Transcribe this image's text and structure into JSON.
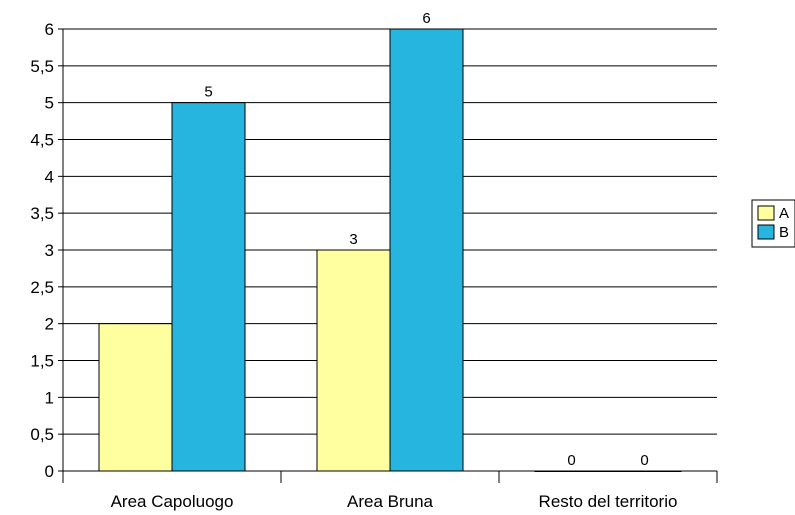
{
  "chart_data": {
    "type": "bar",
    "title": "",
    "categories": [
      "Area Capoluogo",
      "Area Bruna",
      "Resto del territorio"
    ],
    "series": [
      {
        "name": "A",
        "values": [
          2,
          3,
          0
        ],
        "color": "#FFFFA0"
      },
      {
        "name": "B",
        "values": [
          5,
          6,
          0
        ],
        "color": "#26B5DF"
      }
    ],
    "data_labels": [
      [
        null,
        3,
        0
      ],
      [
        5,
        6,
        0
      ]
    ],
    "ylim": [
      0,
      6
    ],
    "yticks": [
      "0",
      "0,5",
      "1",
      "1,5",
      "2",
      "2,5",
      "3",
      "3,5",
      "4",
      "4,5",
      "5",
      "5,5",
      "6"
    ],
    "grid": true,
    "legend_position": "right"
  }
}
